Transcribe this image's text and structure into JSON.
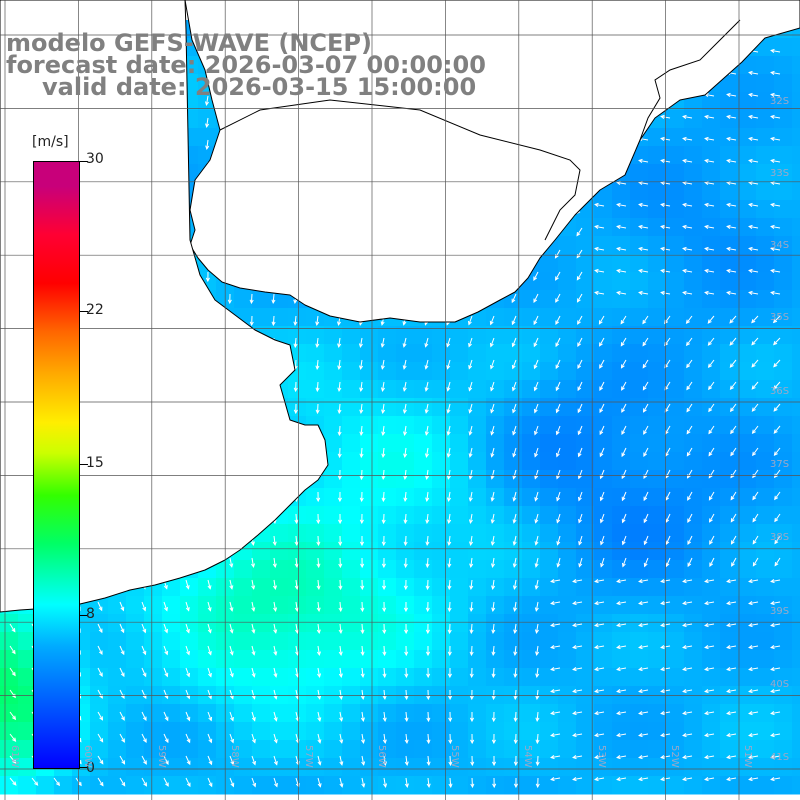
{
  "title": {
    "line1": "modelo GEFS-WAVE (NCEP)",
    "line2": "forecast date: 2026-03-07 00:00:00",
    "line3": "valid date: 2026-03-15 15:00:00"
  },
  "colorbar": {
    "unit": "[m/s]",
    "ticks": [
      "30",
      "22",
      "15",
      "8",
      "0"
    ],
    "tick_values": [
      30,
      22,
      15,
      8,
      0
    ],
    "min": 0,
    "max": 30,
    "colors": [
      "#0000ff",
      "#00aaff",
      "#00ffff",
      "#33ff00",
      "#ffee00",
      "#ff6600",
      "#ff0000",
      "#c8007a"
    ]
  },
  "lat_labels": [
    "32S",
    "33S",
    "34S",
    "35S",
    "36S",
    "37S",
    "38S",
    "39S",
    "40S",
    "41S"
  ],
  "lon_labels": [
    "61W",
    "60W",
    "59W",
    "58W",
    "57W",
    "56W",
    "55W",
    "54W",
    "53W",
    "52W",
    "51W"
  ],
  "colors": {
    "land": "#ffffff",
    "coastline": "#000000",
    "grid": "#555555",
    "arrows": "#ffffff",
    "title": "#808080"
  }
}
